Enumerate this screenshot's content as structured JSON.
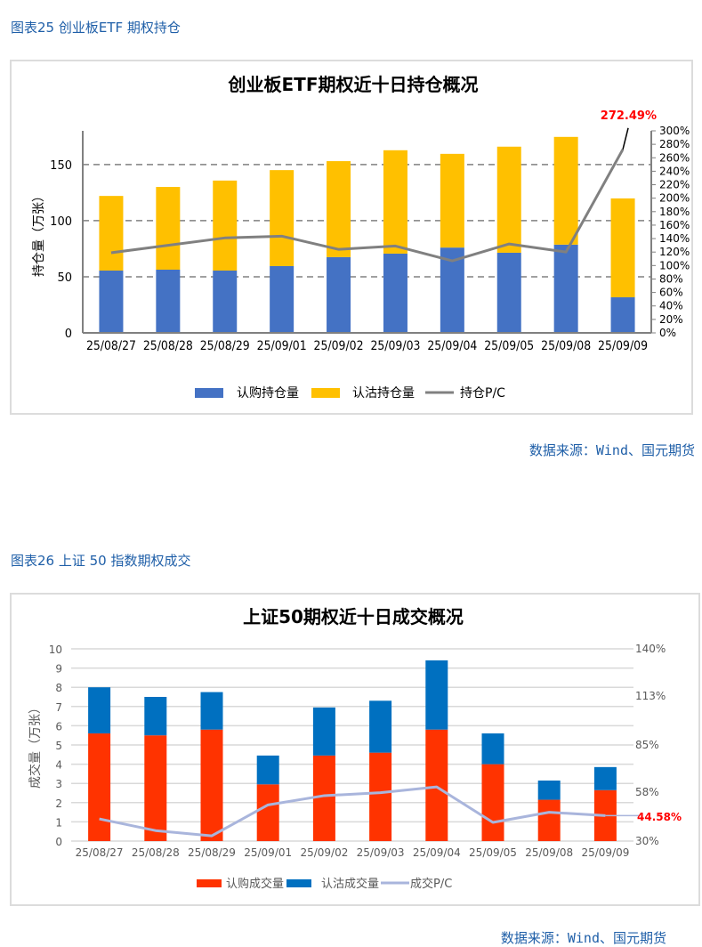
{
  "captions": {
    "fig25": "图表25  创业板ETF 期权持仓",
    "fig26": "图表26  上证 50 指数期权成交"
  },
  "source": "数据来源：Wind、国元期货",
  "chart_data": [
    {
      "type": "bar",
      "stacked": true,
      "title": "创业板ETF期权近十日持仓概况",
      "ylabel": "持仓量（万张）",
      "categories": [
        "25/08/27",
        "25/08/28",
        "25/08/29",
        "25/09/01",
        "25/09/02",
        "25/09/03",
        "25/09/04",
        "25/09/05",
        "25/09/08",
        "25/09/09"
      ],
      "ylim": [
        0,
        180
      ],
      "yticks": [
        0,
        50,
        100,
        150
      ],
      "y2lim": [
        0,
        300
      ],
      "y2ticks": [
        "0%",
        "20%",
        "40%",
        "60%",
        "80%",
        "100%",
        "120%",
        "140%",
        "160%",
        "180%",
        "200%",
        "220%",
        "240%",
        "260%",
        "280%",
        "300%"
      ],
      "grid": "dashed horizontal",
      "legend": "bottom",
      "series": [
        {
          "name": "认购持仓量",
          "kind": "bar",
          "axis": "left",
          "color": "#4472c4",
          "values": [
            55.5,
            56.3,
            55.5,
            59.5,
            67.5,
            70.6,
            76.0,
            71.4,
            78.6,
            31.7
          ]
        },
        {
          "name": "认沽持仓量",
          "kind": "bar",
          "axis": "left",
          "color": "#ffc000",
          "values": [
            66.5,
            73.7,
            80.2,
            85.5,
            85.5,
            92.1,
            83.5,
            94.5,
            96.0,
            88.1
          ]
        },
        {
          "name": "持仓P/C",
          "kind": "line",
          "axis": "right",
          "unit": "%",
          "color": "#808080",
          "values": [
            119,
            130,
            141,
            143.6,
            124,
            129,
            107,
            132,
            120,
            272.49
          ]
        }
      ],
      "annotation": {
        "text": "272.49%",
        "color": "#ff0000"
      }
    },
    {
      "type": "bar",
      "stacked": true,
      "title": "上证50期权近十日成交概况",
      "ylabel": "成交量（万张）",
      "categories": [
        "25/08/27",
        "25/08/28",
        "25/08/29",
        "25/09/01",
        "25/09/02",
        "25/09/03",
        "25/09/04",
        "25/09/05",
        "25/09/08",
        "25/09/09"
      ],
      "ylim": [
        0,
        10
      ],
      "yticks": [
        0,
        1,
        2,
        3,
        4,
        5,
        6,
        7,
        8,
        9,
        10
      ],
      "y2lim": [
        30,
        140
      ],
      "y2ticks": [
        "30%",
        "58%",
        "85%",
        "113%",
        "140%"
      ],
      "grid": "solid horizontal",
      "legend": "bottom",
      "series": [
        {
          "name": "认购成交量",
          "kind": "bar",
          "axis": "left",
          "color": "#ff3300",
          "values": [
            5.6,
            5.5,
            5.8,
            2.95,
            4.45,
            4.6,
            5.8,
            4.0,
            2.15,
            2.65
          ]
        },
        {
          "name": "认沽成交量",
          "kind": "bar",
          "axis": "left",
          "color": "#0070c0",
          "values": [
            2.4,
            2.0,
            1.95,
            1.5,
            2.5,
            2.7,
            3.6,
            1.6,
            1.0,
            1.2
          ]
        },
        {
          "name": "成交P/C",
          "kind": "line",
          "axis": "right",
          "unit": "%",
          "color": "#a9b5dc",
          "values": [
            42.7,
            36,
            33,
            50.7,
            56,
            57.7,
            61,
            40.7,
            46.5,
            44.58
          ]
        }
      ],
      "annotation": {
        "text": "44.58%",
        "color": "#ff0000"
      }
    }
  ]
}
